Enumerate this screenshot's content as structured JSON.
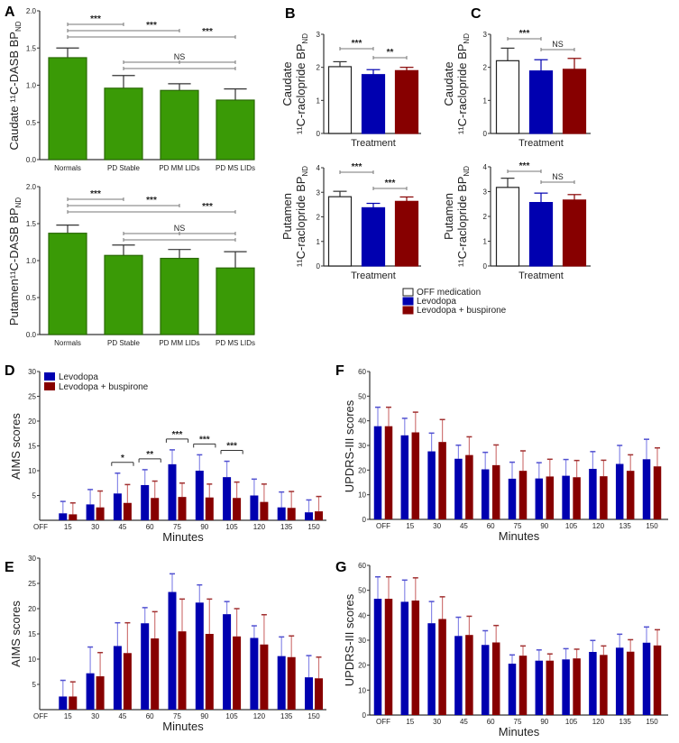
{
  "colors": {
    "green": "#3a9a06",
    "white": "#ffffff",
    "blue": "#0000b0",
    "red": "#870000",
    "axis": "#333333",
    "bracket": "#777777"
  },
  "legend_bc": [
    "OFF medication",
    "Levodopa",
    "Levodopa + buspirone"
  ],
  "legend_d": [
    "Levodopa",
    "Levodopa + buspirone"
  ],
  "chart_data": [
    {
      "id": "A1",
      "panel": "A",
      "type": "bar",
      "ylabel": "Caudate ¹¹C-DASB BP",
      "ylabel_sub": "ND",
      "ylim": [
        0,
        2
      ],
      "yticks": [
        "0.0",
        "0.5",
        "1.0",
        "1.5",
        "2.0"
      ],
      "categories": [
        "Normals",
        "PD Stable",
        "PD MM LIDs",
        "PD MS LIDs"
      ],
      "values": [
        1.37,
        0.96,
        0.93,
        0.8
      ],
      "errors": [
        0.13,
        0.17,
        0.09,
        0.15
      ],
      "color": "green",
      "comparisons": [
        {
          "from": 0,
          "to": 1,
          "label": "***"
        },
        {
          "from": 0,
          "to": 2,
          "label": "***"
        },
        {
          "from": 0,
          "to": 3,
          "label": "***"
        },
        {
          "from": 1,
          "to": 3,
          "mid": 2,
          "label": "NS"
        }
      ]
    },
    {
      "id": "A2",
      "panel": "",
      "type": "bar",
      "ylabel": "Putamen¹¹C-DASB BP",
      "ylabel_sub": "ND",
      "ylim": [
        0,
        2
      ],
      "yticks": [
        "0.0",
        "0.5",
        "1.0",
        "1.5",
        "2.0"
      ],
      "categories": [
        "Normals",
        "PD Stable",
        "PD MM LIDs",
        "PD MS LIDs"
      ],
      "values": [
        1.37,
        1.07,
        1.03,
        0.9
      ],
      "errors": [
        0.11,
        0.14,
        0.12,
        0.22
      ],
      "color": "green",
      "comparisons": [
        {
          "from": 0,
          "to": 1,
          "label": "***"
        },
        {
          "from": 0,
          "to": 2,
          "label": "***"
        },
        {
          "from": 0,
          "to": 3,
          "label": "***"
        },
        {
          "from": 1,
          "to": 3,
          "mid": 2,
          "label": "NS"
        }
      ]
    },
    {
      "id": "B1",
      "panel": "B",
      "type": "bar",
      "ylabel": "Caudate",
      "ylabel2": "¹¹C-raclopride BP",
      "ylabel_sub": "ND",
      "xlabel": "Treatment",
      "ylim": [
        0,
        3
      ],
      "yticks": [
        "0",
        "1",
        "2",
        "3"
      ],
      "categories": [
        "OFF medication",
        "Levodopa",
        "Levodopa + buspirone"
      ],
      "values": [
        2.02,
        1.78,
        1.9
      ],
      "errors": [
        0.15,
        0.15,
        0.1
      ],
      "comparisons": [
        {
          "from": 0,
          "to": 1,
          "label": "***"
        },
        {
          "from": 1,
          "to": 2,
          "label": "**"
        }
      ]
    },
    {
      "id": "B2",
      "panel": "",
      "type": "bar",
      "ylabel": "Putamen",
      "ylabel2": "¹¹C-raclopride BP",
      "ylabel_sub": "ND",
      "xlabel": "Treatment",
      "ylim": [
        0,
        4
      ],
      "yticks": [
        "0",
        "1",
        "2",
        "3",
        "4"
      ],
      "categories": [
        "OFF medication",
        "Levodopa",
        "Levodopa + buspirone"
      ],
      "values": [
        2.82,
        2.37,
        2.63
      ],
      "errors": [
        0.22,
        0.18,
        0.18
      ],
      "comparisons": [
        {
          "from": 0,
          "to": 1,
          "label": "***"
        },
        {
          "from": 1,
          "to": 2,
          "label": "***"
        }
      ]
    },
    {
      "id": "C1",
      "panel": "C",
      "type": "bar",
      "ylabel": "Caudate",
      "ylabel2": "¹¹C-raclopride BP",
      "ylabel_sub": "ND",
      "xlabel": "Treatment",
      "ylim": [
        0,
        3
      ],
      "yticks": [
        "0",
        "1",
        "2",
        "3"
      ],
      "categories": [
        "OFF medication",
        "Levodopa",
        "Levodopa + buspirone"
      ],
      "values": [
        2.2,
        1.89,
        1.94
      ],
      "errors": [
        0.38,
        0.34,
        0.33
      ],
      "comparisons": [
        {
          "from": 0,
          "to": 1,
          "label": "***"
        },
        {
          "from": 1,
          "to": 2,
          "label": "NS"
        }
      ]
    },
    {
      "id": "C2",
      "panel": "",
      "type": "bar",
      "ylabel": "Putamen",
      "ylabel2": "¹¹C-raclopride BP",
      "ylabel_sub": "ND",
      "xlabel": "Treatment",
      "ylim": [
        0,
        4
      ],
      "yticks": [
        "0",
        "1",
        "2",
        "3",
        "4"
      ],
      "categories": [
        "OFF medication",
        "Levodopa",
        "Levodopa + buspirone"
      ],
      "values": [
        3.17,
        2.56,
        2.66
      ],
      "errors": [
        0.37,
        0.38,
        0.22
      ],
      "comparisons": [
        {
          "from": 0,
          "to": 1,
          "label": "***"
        },
        {
          "from": 1,
          "to": 2,
          "label": "NS"
        }
      ]
    },
    {
      "id": "D",
      "panel": "D",
      "type": "bar",
      "ylabel": "AIMS scores",
      "xlabel": "Minutes",
      "ylim": [
        0,
        30
      ],
      "yticks": [
        "5",
        "10",
        "15",
        "20",
        "25",
        "30"
      ],
      "categories": [
        "OFF",
        "15",
        "30",
        "45",
        "60",
        "75",
        "90",
        "105",
        "120",
        "135",
        "150"
      ],
      "series": [
        {
          "name": "Levodopa",
          "values": [
            null,
            1.4,
            3.2,
            5.4,
            7.1,
            11.3,
            10.0,
            8.7,
            5.0,
            2.6,
            1.6
          ],
          "errors": [
            null,
            2.4,
            3.0,
            4.1,
            3.1,
            2.9,
            3.2,
            3.2,
            3.3,
            3.1,
            2.5
          ]
        },
        {
          "name": "Levodopa + buspirone",
          "values": [
            null,
            1.2,
            2.6,
            3.5,
            4.5,
            4.7,
            4.6,
            4.5,
            3.7,
            2.5,
            1.8
          ],
          "errors": [
            null,
            2.3,
            3.3,
            3.7,
            3.4,
            2.8,
            2.7,
            3.2,
            3.6,
            3.3,
            3.0
          ]
        }
      ],
      "significance": [
        {
          "index": 3,
          "label": "*"
        },
        {
          "index": 4,
          "label": "**"
        },
        {
          "index": 5,
          "label": "***"
        },
        {
          "index": 6,
          "label": "***"
        },
        {
          "index": 7,
          "label": "***"
        }
      ]
    },
    {
      "id": "E",
      "panel": "E",
      "type": "bar",
      "ylabel": "AIMS scores",
      "xlabel": "Minutes",
      "ylim": [
        0,
        30
      ],
      "yticks": [
        "5",
        "10",
        "15",
        "20",
        "25",
        "30"
      ],
      "categories": [
        "OFF",
        "15",
        "30",
        "45",
        "60",
        "75",
        "90",
        "105",
        "120",
        "135",
        "150"
      ],
      "series": [
        {
          "name": "Levodopa",
          "values": [
            null,
            2.6,
            7.2,
            12.6,
            17.1,
            23.3,
            21.2,
            18.9,
            14.2,
            10.6,
            6.4
          ],
          "errors": [
            null,
            3.2,
            5.2,
            4.6,
            3.1,
            3.6,
            3.5,
            2.5,
            2.4,
            3.8,
            4.3
          ]
        },
        {
          "name": "Levodopa + buspirone",
          "values": [
            null,
            2.6,
            6.6,
            11.2,
            14.1,
            15.5,
            15.0,
            14.5,
            12.9,
            10.4,
            6.2
          ],
          "errors": [
            null,
            2.9,
            4.7,
            6.0,
            5.3,
            6.4,
            6.9,
            5.5,
            5.9,
            4.2,
            4.2
          ]
        }
      ],
      "significance": []
    },
    {
      "id": "F",
      "panel": "F",
      "type": "bar",
      "ylabel": "UPDRS-III scores",
      "xlabel": "Minutes",
      "ylim": [
        0,
        60
      ],
      "yticks": [
        "0",
        "10",
        "20",
        "30",
        "40",
        "50",
        "60"
      ],
      "categories": [
        "OFF",
        "15",
        "30",
        "45",
        "60",
        "75",
        "90",
        "105",
        "120",
        "135",
        "150"
      ],
      "series": [
        {
          "name": "Levodopa",
          "values": [
            37.8,
            34.1,
            27.6,
            24.6,
            20.3,
            16.5,
            16.6,
            17.7,
            20.5,
            22.5,
            24.4
          ],
          "errors": [
            7.7,
            6.9,
            7.4,
            5.5,
            6.9,
            6.7,
            6.4,
            6.6,
            7.0,
            7.5,
            8.1
          ]
        },
        {
          "name": "Levodopa + buspirone",
          "values": [
            37.8,
            35.3,
            31.4,
            26.1,
            22.0,
            19.7,
            17.4,
            17.1,
            17.5,
            19.7,
            21.5
          ],
          "errors": [
            7.7,
            8.2,
            9.1,
            7.4,
            8.2,
            8.1,
            7.0,
            6.8,
            6.5,
            6.5,
            7.5
          ]
        }
      ],
      "significance": []
    },
    {
      "id": "G",
      "panel": "G",
      "type": "bar",
      "ylabel": "UPDRS-III scores",
      "xlabel": "Minutes",
      "ylim": [
        0,
        60
      ],
      "yticks": [
        "0",
        "10",
        "20",
        "30",
        "40",
        "50",
        "60"
      ],
      "categories": [
        "OFF",
        "15",
        "30",
        "45",
        "60",
        "75",
        "90",
        "105",
        "120",
        "135",
        "150"
      ],
      "series": [
        {
          "name": "Levodopa",
          "values": [
            46.6,
            45.4,
            36.8,
            31.7,
            28.1,
            20.6,
            21.8,
            22.3,
            25.3,
            27.0,
            29.0
          ],
          "errors": [
            8.8,
            8.7,
            8.7,
            7.5,
            5.7,
            3.5,
            4.3,
            4.3,
            4.6,
            5.4,
            6.3
          ]
        },
        {
          "name": "Levodopa + buspirone",
          "values": [
            46.6,
            45.9,
            38.5,
            32.1,
            29.1,
            23.8,
            21.8,
            22.7,
            24.1,
            25.4,
            27.9
          ],
          "errors": [
            8.8,
            9.1,
            8.9,
            7.5,
            6.8,
            3.9,
            2.7,
            3.7,
            3.6,
            4.8,
            6.3
          ]
        }
      ],
      "significance": []
    }
  ]
}
